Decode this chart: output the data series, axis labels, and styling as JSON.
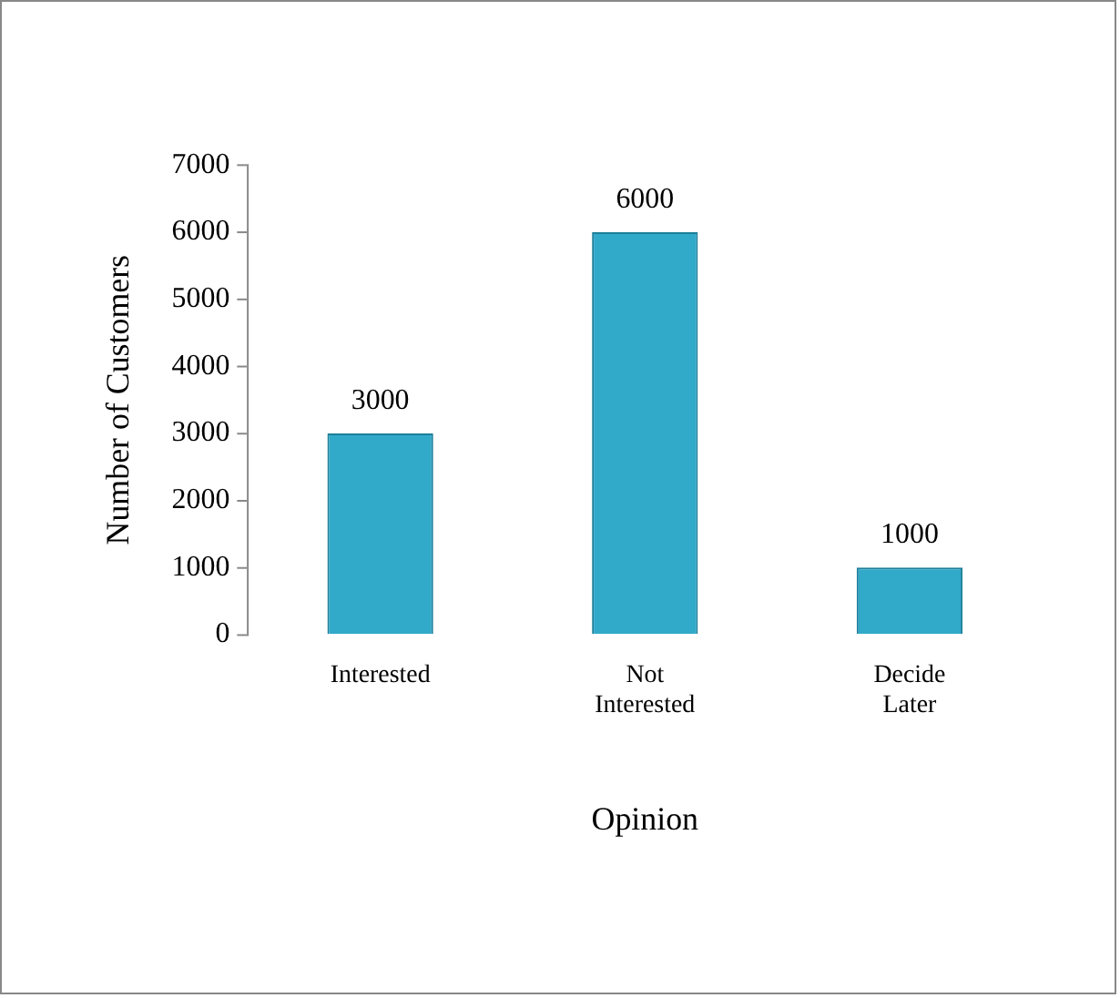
{
  "chart_data": {
    "type": "bar",
    "categories": [
      "Interested",
      "Not Interested",
      "Decide Later"
    ],
    "values": [
      3000,
      6000,
      1000
    ],
    "color": "#31a9c9",
    "xlabel": "Opinion",
    "ylabel": "Number of Customers",
    "ylim": [
      0,
      7000
    ],
    "yticks": [
      0,
      1000,
      2000,
      3000,
      4000,
      5000,
      6000,
      7000
    ],
    "data_labels": true,
    "grid": false,
    "legend": false
  }
}
